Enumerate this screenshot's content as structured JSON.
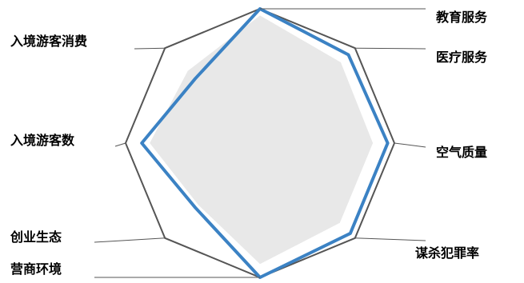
{
  "chart_data": {
    "type": "radar",
    "axes": [
      "教育服务",
      "医疗服务",
      "空气质量",
      "谋杀犯罪率",
      "营商环境",
      "创业生态",
      "入境游客数",
      "入境游客消费"
    ],
    "rmax": 1.0,
    "series": [
      {
        "values": [
          0.95,
          0.85,
          0.84,
          0.84,
          0.9,
          0.65,
          0.82,
          0.76
        ]
      },
      {
        "values": [
          1.0,
          0.93,
          0.95,
          0.95,
          1.0,
          0.68,
          0.88,
          0.68
        ]
      }
    ],
    "colors": {
      "outline": "#555555",
      "fill": "#e8e8e8",
      "line": "#3b82c4",
      "leader": "#555555"
    }
  }
}
